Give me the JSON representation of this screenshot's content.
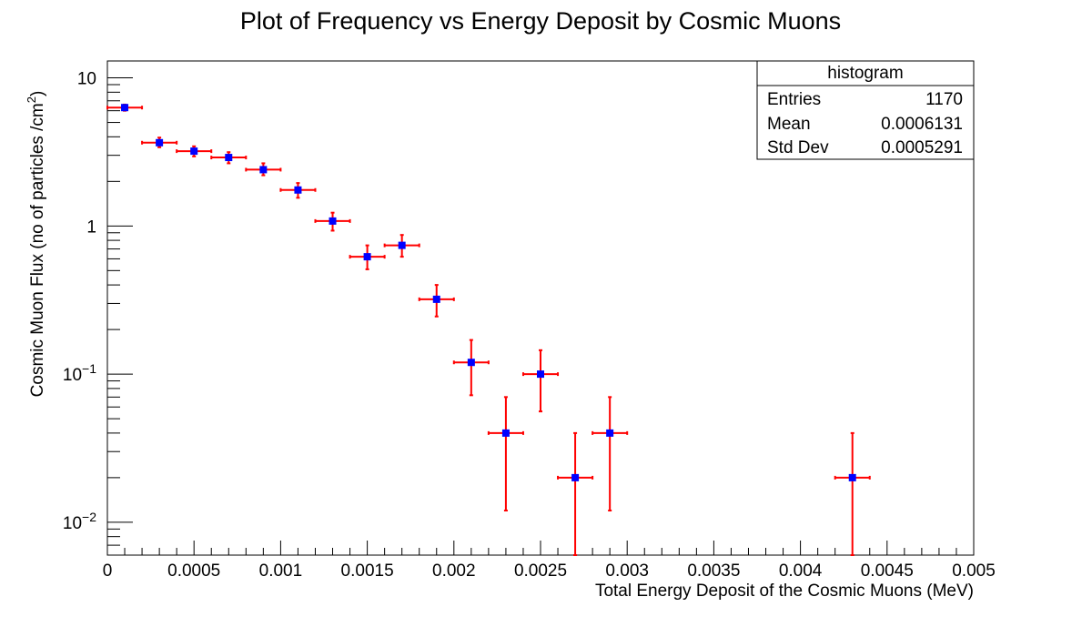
{
  "chart_data": {
    "type": "scatter",
    "title": "Plot of Frequency  vs Energy Deposit by Cosmic Muons",
    "xlabel": "Total Energy Deposit of the Cosmic Muons (MeV)",
    "ylabel": "Cosmic Muon Flux (no of particles /cm",
    "ylabel_sup": "2",
    "ylabel_close": ")",
    "xlim": [
      0,
      0.005
    ],
    "ylim": [
      0.006,
      13
    ],
    "yscale": "log",
    "grid": false,
    "x_ticks": [
      "0",
      "0.0005",
      "0.001",
      "0.0015",
      "0.002",
      "0.0025",
      "0.003",
      "0.0035",
      "0.004",
      "0.0045",
      "0.005"
    ],
    "x_tick_values": [
      0,
      0.0005,
      0.001,
      0.0015,
      0.002,
      0.0025,
      0.003,
      0.0035,
      0.004,
      0.0045,
      0.005
    ],
    "y_ticks": [
      {
        "base": "10",
        "exp": "−2",
        "value": 0.01
      },
      {
        "base": "10",
        "exp": "−1",
        "value": 0.1
      },
      {
        "base": "1",
        "exp": "",
        "value": 1
      },
      {
        "base": "10",
        "exp": "",
        "value": 10
      }
    ],
    "series": [
      {
        "marker_color": "#0000ff",
        "error_color": "#ff0000",
        "x_error": 0.0001,
        "points": [
          {
            "x": 0.0001,
            "y": 6.3,
            "ylo": 6.0,
            "yhi": 6.6
          },
          {
            "x": 0.0003,
            "y": 3.65,
            "ylo": 3.4,
            "yhi": 3.95
          },
          {
            "x": 0.0005,
            "y": 3.2,
            "ylo": 2.95,
            "yhi": 3.45
          },
          {
            "x": 0.0007,
            "y": 2.9,
            "ylo": 2.65,
            "yhi": 3.15
          },
          {
            "x": 0.0009,
            "y": 2.4,
            "ylo": 2.2,
            "yhi": 2.65
          },
          {
            "x": 0.0011,
            "y": 1.75,
            "ylo": 1.55,
            "yhi": 1.95
          },
          {
            "x": 0.0013,
            "y": 1.08,
            "ylo": 0.93,
            "yhi": 1.23
          },
          {
            "x": 0.0015,
            "y": 0.62,
            "ylo": 0.51,
            "yhi": 0.74
          },
          {
            "x": 0.0017,
            "y": 0.74,
            "ylo": 0.62,
            "yhi": 0.87
          },
          {
            "x": 0.0019,
            "y": 0.32,
            "ylo": 0.245,
            "yhi": 0.4
          },
          {
            "x": 0.0021,
            "y": 0.12,
            "ylo": 0.072,
            "yhi": 0.17
          },
          {
            "x": 0.0023,
            "y": 0.04,
            "ylo": 0.012,
            "yhi": 0.07
          },
          {
            "x": 0.0025,
            "y": 0.1,
            "ylo": 0.056,
            "yhi": 0.145
          },
          {
            "x": 0.0027,
            "y": 0.02,
            "ylo": 0.006,
            "yhi": 0.04
          },
          {
            "x": 0.0029,
            "y": 0.04,
            "ylo": 0.012,
            "yhi": 0.07
          },
          {
            "x": 0.0043,
            "y": 0.02,
            "ylo": 0.006,
            "yhi": 0.04
          }
        ]
      }
    ],
    "stats_box": {
      "title": "histogram",
      "rows": [
        {
          "label": "Entries",
          "value": "1170"
        },
        {
          "label": "Mean",
          "value": "0.0006131"
        },
        {
          "label": "Std Dev",
          "value": "0.0005291"
        }
      ],
      "placement": "top-right"
    }
  }
}
